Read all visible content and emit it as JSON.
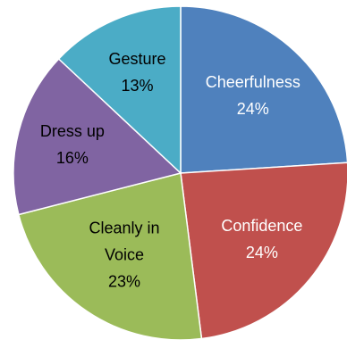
{
  "chart_data": {
    "type": "pie",
    "title": "",
    "slices": [
      {
        "label": "Cheerfulness",
        "value": 24,
        "display": "24%",
        "color": "#4f81bd",
        "label_lines": [
          "Cheerfulness"
        ],
        "text_color": "#ffffff"
      },
      {
        "label": "Confidence",
        "value": 24,
        "display": "24%",
        "color": "#c0504d",
        "label_lines": [
          "Confidence"
        ],
        "text_color": "#ffffff"
      },
      {
        "label": "Cleanly in Voice",
        "value": 23,
        "display": "23%",
        "color": "#9bbb59",
        "label_lines": [
          "Cleanly in",
          "Voice"
        ],
        "text_color": "#000000"
      },
      {
        "label": "Dress up",
        "value": 16,
        "display": "16%",
        "color": "#8064a2",
        "label_lines": [
          "Dress up"
        ],
        "text_color": "#000000"
      },
      {
        "label": "Gesture",
        "value": 13,
        "display": "13%",
        "color": "#4bacc6",
        "label_lines": [
          "Gesture"
        ],
        "text_color": "#000000"
      }
    ],
    "start_angle_deg": 0,
    "direction": "clockwise",
    "legend": "none"
  }
}
